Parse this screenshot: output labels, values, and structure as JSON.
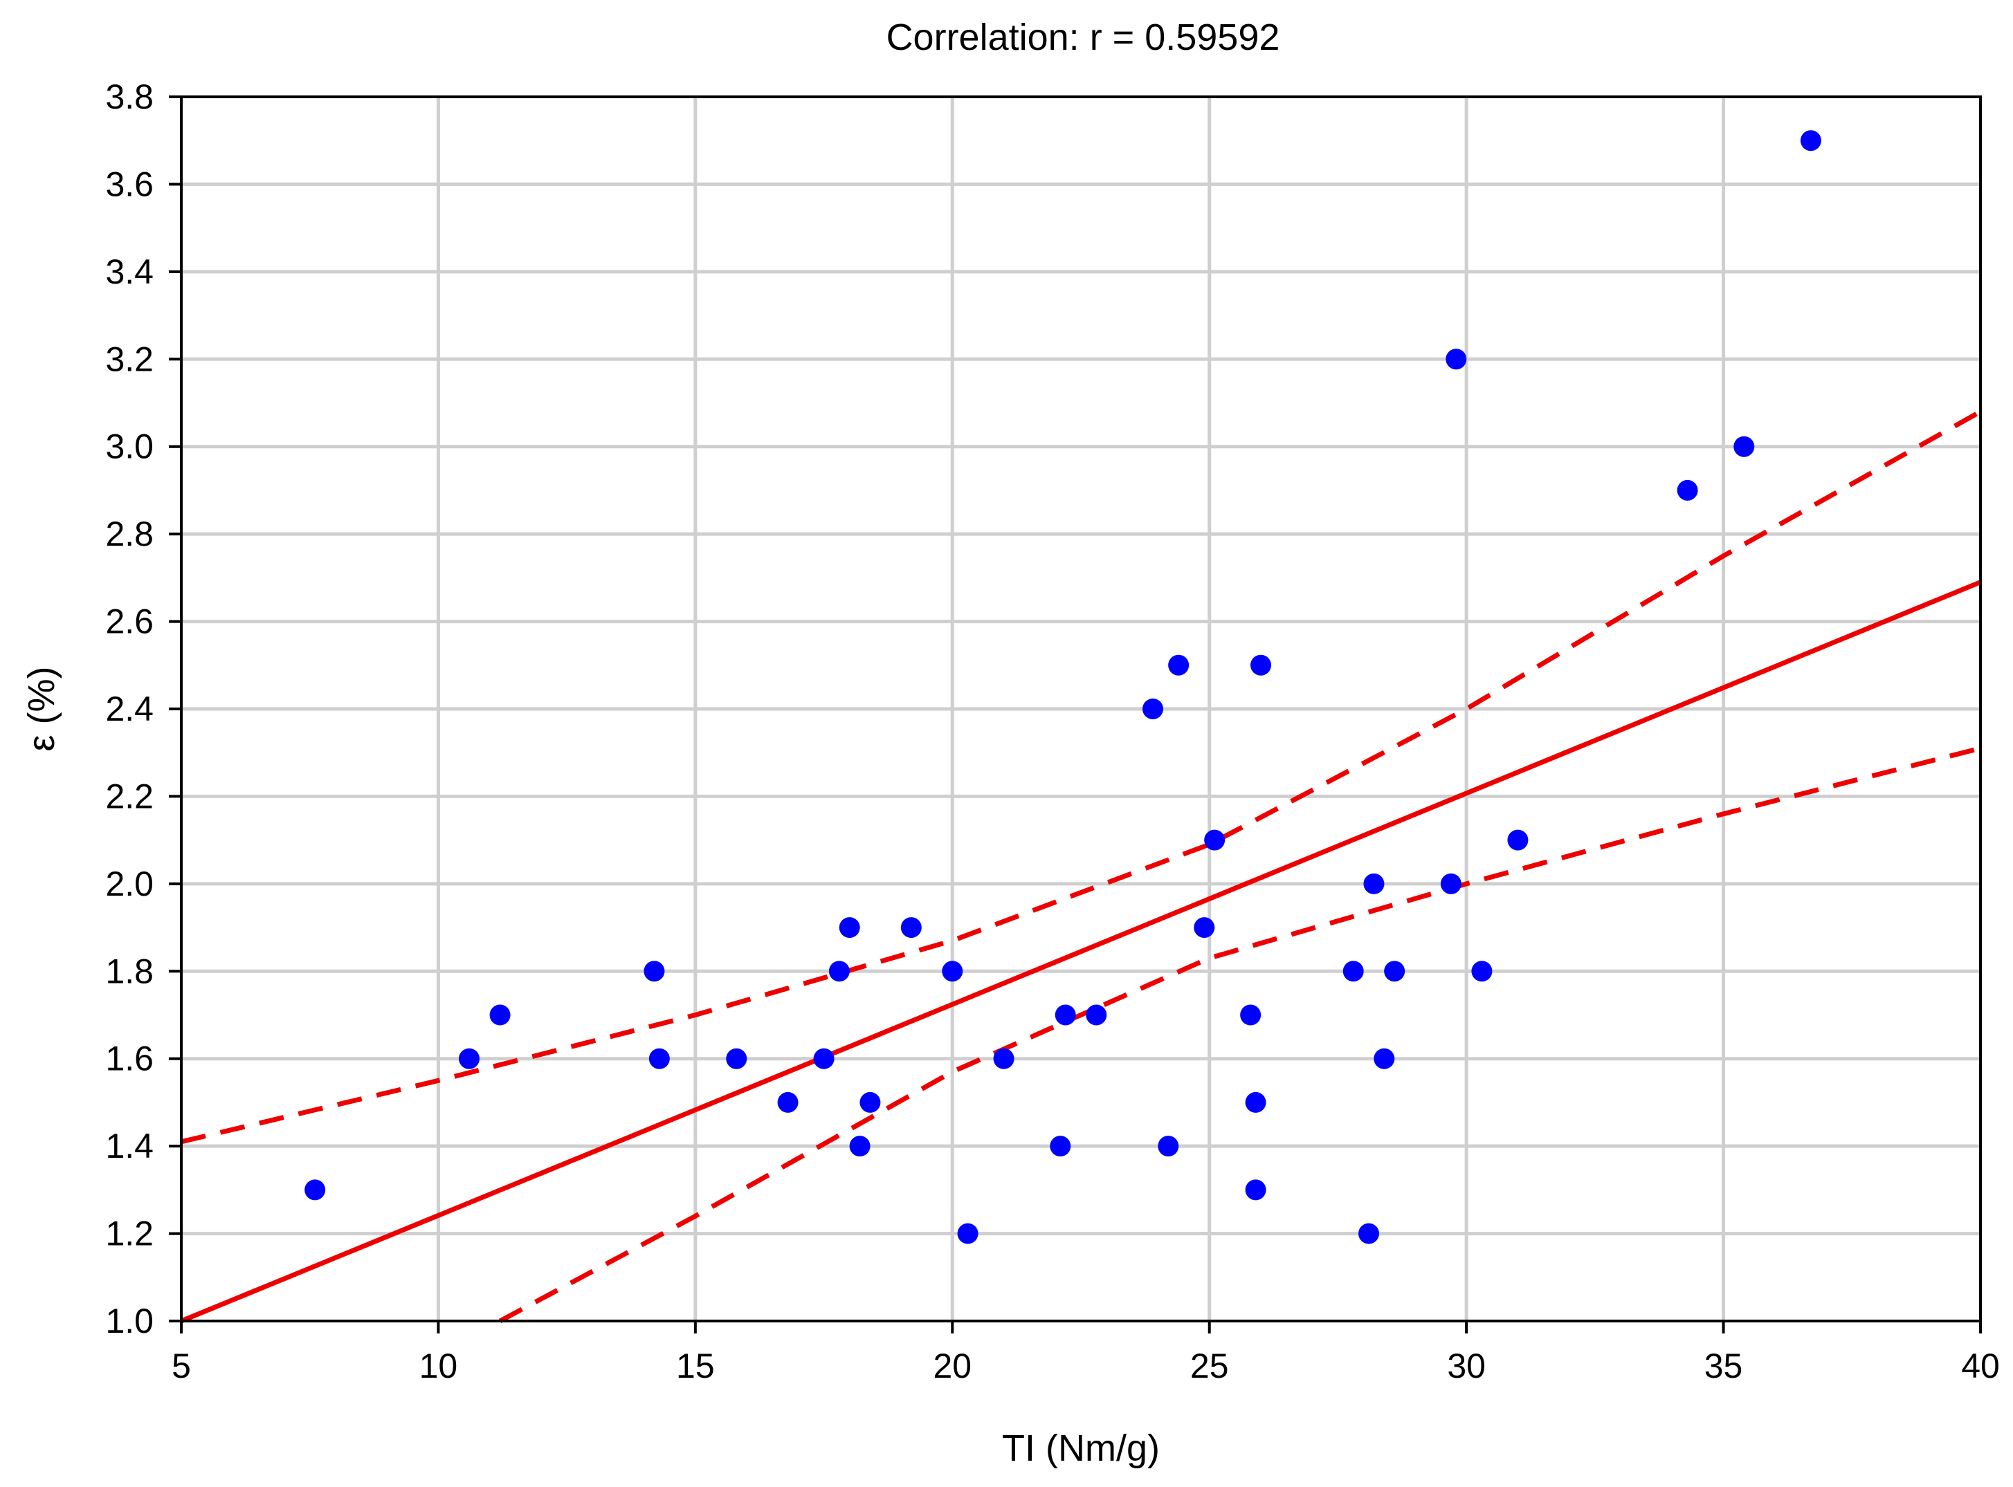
{
  "chart_data": {
    "type": "scatter",
    "title": "Correlation: r = 0.59592",
    "xlabel": "TI (Nm/g)",
    "ylabel": "ε (%)",
    "xlim": [
      5,
      40
    ],
    "ylim": [
      1.0,
      3.8
    ],
    "xticks": [
      5,
      10,
      15,
      20,
      25,
      30,
      35,
      40
    ],
    "xtick_labels": [
      "5",
      "10",
      "15",
      "20",
      "25",
      "30",
      "35",
      "40"
    ],
    "yticks": [
      1.0,
      1.2,
      1.4,
      1.6,
      1.8,
      2.0,
      2.2,
      2.4,
      2.6,
      2.8,
      3.0,
      3.2,
      3.4,
      3.6,
      3.8
    ],
    "ytick_labels": [
      "1.0",
      "1.2",
      "1.4",
      "1.6",
      "1.8",
      "2.0",
      "2.2",
      "2.4",
      "2.6",
      "2.8",
      "3.0",
      "3.2",
      "3.4",
      "3.6",
      "3.8"
    ],
    "grid": true,
    "points": [
      {
        "x": 7.6,
        "y": 1.3
      },
      {
        "x": 10.6,
        "y": 1.6
      },
      {
        "x": 11.2,
        "y": 1.7
      },
      {
        "x": 14.2,
        "y": 1.8
      },
      {
        "x": 14.3,
        "y": 1.6
      },
      {
        "x": 15.8,
        "y": 1.6
      },
      {
        "x": 16.8,
        "y": 1.5
      },
      {
        "x": 17.5,
        "y": 1.6
      },
      {
        "x": 17.8,
        "y": 1.8
      },
      {
        "x": 18.0,
        "y": 1.9
      },
      {
        "x": 18.2,
        "y": 1.4
      },
      {
        "x": 18.4,
        "y": 1.5
      },
      {
        "x": 19.2,
        "y": 1.9
      },
      {
        "x": 20.0,
        "y": 1.8
      },
      {
        "x": 20.3,
        "y": 1.2
      },
      {
        "x": 21.0,
        "y": 1.6
      },
      {
        "x": 22.1,
        "y": 1.4
      },
      {
        "x": 22.2,
        "y": 1.7
      },
      {
        "x": 22.8,
        "y": 1.7
      },
      {
        "x": 23.9,
        "y": 2.4
      },
      {
        "x": 24.2,
        "y": 1.4
      },
      {
        "x": 24.4,
        "y": 2.5
      },
      {
        "x": 24.9,
        "y": 1.9
      },
      {
        "x": 25.1,
        "y": 2.1
      },
      {
        "x": 25.8,
        "y": 1.7
      },
      {
        "x": 25.9,
        "y": 1.5
      },
      {
        "x": 25.9,
        "y": 1.3
      },
      {
        "x": 26.0,
        "y": 2.5
      },
      {
        "x": 27.8,
        "y": 1.8
      },
      {
        "x": 28.1,
        "y": 1.2
      },
      {
        "x": 28.2,
        "y": 2.0
      },
      {
        "x": 28.4,
        "y": 1.6
      },
      {
        "x": 28.6,
        "y": 1.8
      },
      {
        "x": 29.7,
        "y": 2.0
      },
      {
        "x": 29.8,
        "y": 3.2
      },
      {
        "x": 30.3,
        "y": 1.8
      },
      {
        "x": 31.0,
        "y": 2.1
      },
      {
        "x": 34.3,
        "y": 2.9
      },
      {
        "x": 35.4,
        "y": 3.0
      },
      {
        "x": 36.7,
        "y": 3.7
      }
    ],
    "fit_line": [
      {
        "x": 5,
        "y": 1.0
      },
      {
        "x": 40,
        "y": 2.69
      }
    ],
    "confidence_upper": [
      {
        "x": 5,
        "y": 1.41
      },
      {
        "x": 10,
        "y": 1.55
      },
      {
        "x": 15,
        "y": 1.7
      },
      {
        "x": 20,
        "y": 1.87
      },
      {
        "x": 25,
        "y": 2.09
      },
      {
        "x": 30,
        "y": 2.4
      },
      {
        "x": 35,
        "y": 2.75
      },
      {
        "x": 40,
        "y": 3.08
      }
    ],
    "confidence_lower": [
      {
        "x": 11.2,
        "y": 1.0
      },
      {
        "x": 15,
        "y": 1.24
      },
      {
        "x": 20,
        "y": 1.57
      },
      {
        "x": 25,
        "y": 1.83
      },
      {
        "x": 30,
        "y": 2.0
      },
      {
        "x": 35,
        "y": 2.16
      },
      {
        "x": 40,
        "y": 2.31
      }
    ],
    "colors": {
      "points": "#0000ff",
      "fit": "#ee0000",
      "grid": "#cfcfcf",
      "axis": "#000000"
    }
  }
}
